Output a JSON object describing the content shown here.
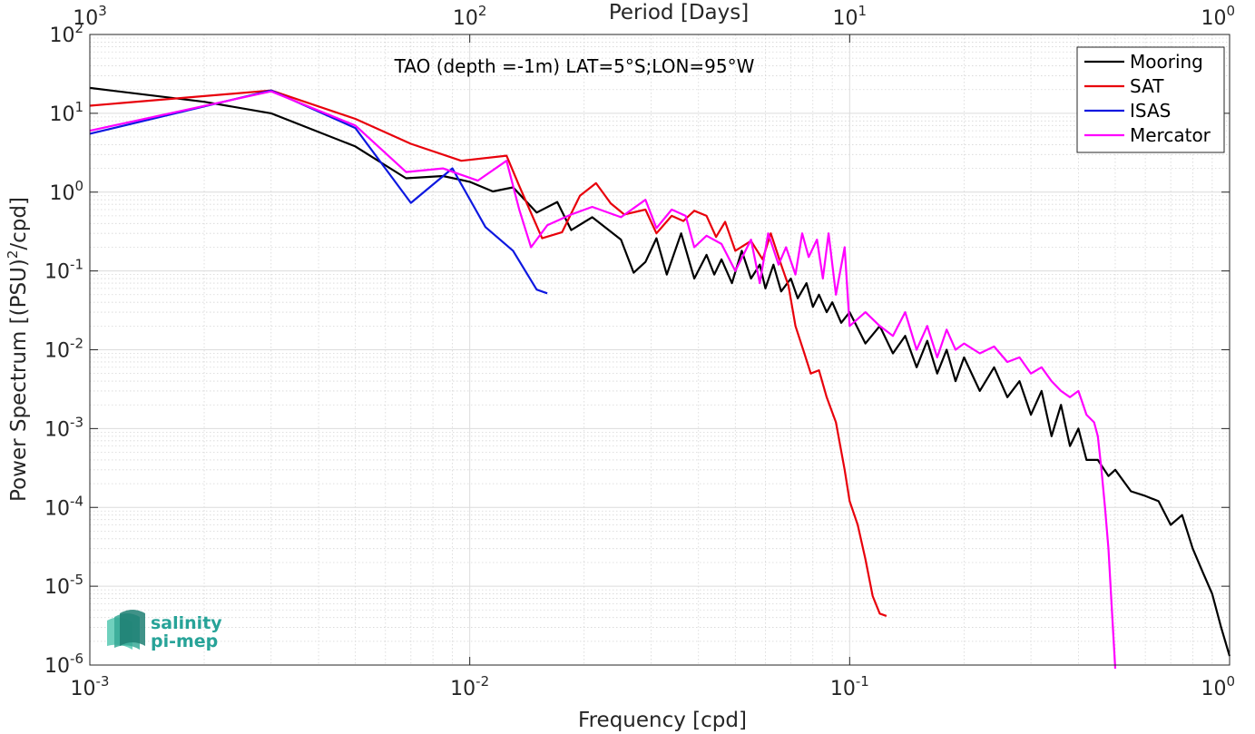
{
  "chart_data": {
    "type": "line",
    "title": "TAO (depth =-1m) LAT=5°S;LON=95°W",
    "xlabel": "Frequency [cpd]",
    "ylabel": "Power Spectrum [(PSU)²/cpd]",
    "ylabel_main": "Power Spectrum [(PSU)",
    "ylabel_sup": "2",
    "ylabel_tail": "/cpd]",
    "top_xlabel": "Period [Days]",
    "x_scale": "log",
    "y_scale": "log",
    "xlim": [
      0.001,
      1
    ],
    "ylim": [
      1e-06,
      100
    ],
    "grid": true,
    "legend_position": "top-right",
    "x_ticks": [
      {
        "base": "10",
        "exp": "-3",
        "value": 0.001
      },
      {
        "base": "10",
        "exp": "-2",
        "value": 0.01
      },
      {
        "base": "10",
        "exp": "-1",
        "value": 0.1
      },
      {
        "base": "10",
        "exp": "0",
        "value": 1
      }
    ],
    "top_ticks": [
      {
        "base": "10",
        "exp": "3",
        "value": 0.001
      },
      {
        "base": "10",
        "exp": "2",
        "value": 0.01
      },
      {
        "base": "10",
        "exp": "1",
        "value": 0.1
      },
      {
        "base": "10",
        "exp": "0",
        "value": 1
      }
    ],
    "y_ticks": [
      {
        "base": "10",
        "exp": "-6",
        "value": 1e-06
      },
      {
        "base": "10",
        "exp": "-5",
        "value": 1e-05
      },
      {
        "base": "10",
        "exp": "-4",
        "value": 0.0001
      },
      {
        "base": "10",
        "exp": "-3",
        "value": 0.001
      },
      {
        "base": "10",
        "exp": "-2",
        "value": 0.01
      },
      {
        "base": "10",
        "exp": "-1",
        "value": 0.1
      },
      {
        "base": "10",
        "exp": "0",
        "value": 1
      },
      {
        "base": "10",
        "exp": "1",
        "value": 10
      },
      {
        "base": "10",
        "exp": "2",
        "value": 100
      }
    ],
    "series": [
      {
        "name": "Mooring",
        "color": "#000000",
        "points": [
          [
            0.001,
            21
          ],
          [
            0.002,
            14
          ],
          [
            0.003,
            10
          ],
          [
            0.005,
            3.8
          ],
          [
            0.0068,
            1.5
          ],
          [
            0.0085,
            1.6
          ],
          [
            0.01,
            1.35
          ],
          [
            0.0115,
            1.02
          ],
          [
            0.013,
            1.15
          ],
          [
            0.015,
            0.55
          ],
          [
            0.017,
            0.75
          ],
          [
            0.0185,
            0.33
          ],
          [
            0.021,
            0.48
          ],
          [
            0.025,
            0.25
          ],
          [
            0.027,
            0.095
          ],
          [
            0.029,
            0.13
          ],
          [
            0.031,
            0.26
          ],
          [
            0.033,
            0.09
          ],
          [
            0.036,
            0.3
          ],
          [
            0.039,
            0.08
          ],
          [
            0.042,
            0.16
          ],
          [
            0.044,
            0.09
          ],
          [
            0.046,
            0.14
          ],
          [
            0.049,
            0.07
          ],
          [
            0.052,
            0.18
          ],
          [
            0.055,
            0.08
          ],
          [
            0.058,
            0.12
          ],
          [
            0.06,
            0.06
          ],
          [
            0.063,
            0.12
          ],
          [
            0.066,
            0.055
          ],
          [
            0.07,
            0.08
          ],
          [
            0.073,
            0.045
          ],
          [
            0.077,
            0.07
          ],
          [
            0.08,
            0.035
          ],
          [
            0.083,
            0.05
          ],
          [
            0.087,
            0.03
          ],
          [
            0.09,
            0.04
          ],
          [
            0.095,
            0.022
          ],
          [
            0.1,
            0.03
          ],
          [
            0.11,
            0.012
          ],
          [
            0.12,
            0.02
          ],
          [
            0.13,
            0.009
          ],
          [
            0.14,
            0.015
          ],
          [
            0.15,
            0.006
          ],
          [
            0.16,
            0.013
          ],
          [
            0.17,
            0.005
          ],
          [
            0.18,
            0.01
          ],
          [
            0.19,
            0.004
          ],
          [
            0.2,
            0.008
          ],
          [
            0.22,
            0.003
          ],
          [
            0.24,
            0.006
          ],
          [
            0.26,
            0.0025
          ],
          [
            0.28,
            0.004
          ],
          [
            0.3,
            0.0015
          ],
          [
            0.32,
            0.003
          ],
          [
            0.34,
            0.0008
          ],
          [
            0.36,
            0.002
          ],
          [
            0.38,
            0.0006
          ],
          [
            0.4,
            0.001
          ],
          [
            0.42,
            0.0004
          ],
          [
            0.45,
            0.0004
          ],
          [
            0.48,
            0.00025
          ],
          [
            0.5,
            0.0003
          ],
          [
            0.55,
            0.00016
          ],
          [
            0.6,
            0.00014
          ],
          [
            0.65,
            0.00012
          ],
          [
            0.7,
            6e-05
          ],
          [
            0.75,
            8e-05
          ],
          [
            0.8,
            3e-05
          ],
          [
            0.85,
            1.5e-05
          ],
          [
            0.9,
            8e-06
          ],
          [
            0.95,
            3e-06
          ],
          [
            1.0,
            1.3e-06
          ]
        ]
      },
      {
        "name": "SAT",
        "color": "#e8000b",
        "points": [
          [
            0.001,
            12.5
          ],
          [
            0.003,
            19.5
          ],
          [
            0.005,
            8.5
          ],
          [
            0.007,
            4.1
          ],
          [
            0.0095,
            2.5
          ],
          [
            0.0125,
            2.9
          ],
          [
            0.0135,
            1.2
          ],
          [
            0.0155,
            0.26
          ],
          [
            0.0175,
            0.31
          ],
          [
            0.0195,
            0.9
          ],
          [
            0.0215,
            1.3
          ],
          [
            0.0235,
            0.72
          ],
          [
            0.0255,
            0.52
          ],
          [
            0.029,
            0.6
          ],
          [
            0.031,
            0.3
          ],
          [
            0.034,
            0.5
          ],
          [
            0.0365,
            0.43
          ],
          [
            0.039,
            0.58
          ],
          [
            0.042,
            0.5
          ],
          [
            0.0445,
            0.27
          ],
          [
            0.047,
            0.42
          ],
          [
            0.05,
            0.18
          ],
          [
            0.055,
            0.24
          ],
          [
            0.059,
            0.14
          ],
          [
            0.062,
            0.3
          ],
          [
            0.066,
            0.12
          ],
          [
            0.069,
            0.065
          ],
          [
            0.072,
            0.02
          ],
          [
            0.076,
            0.009
          ],
          [
            0.079,
            0.005
          ],
          [
            0.083,
            0.0055
          ],
          [
            0.087,
            0.0025
          ],
          [
            0.092,
            0.0012
          ],
          [
            0.097,
            0.0003
          ],
          [
            0.1,
            0.00012
          ],
          [
            0.105,
            6e-05
          ],
          [
            0.11,
            2.2e-05
          ],
          [
            0.115,
            7.5e-06
          ],
          [
            0.12,
            4.5e-06
          ],
          [
            0.125,
            4.2e-06
          ]
        ]
      },
      {
        "name": "ISAS",
        "color": "#0e18e0",
        "points": [
          [
            0.001,
            5.5
          ],
          [
            0.003,
            19.5
          ],
          [
            0.005,
            6.5
          ],
          [
            0.007,
            0.73
          ],
          [
            0.009,
            2.0
          ],
          [
            0.011,
            0.36
          ],
          [
            0.013,
            0.18
          ],
          [
            0.015,
            0.058
          ],
          [
            0.016,
            0.052
          ]
        ]
      },
      {
        "name": "Mercator",
        "color": "#ff00ff",
        "points": [
          [
            0.001,
            6
          ],
          [
            0.003,
            19
          ],
          [
            0.005,
            7
          ],
          [
            0.0068,
            1.8
          ],
          [
            0.0085,
            2.0
          ],
          [
            0.0105,
            1.4
          ],
          [
            0.0125,
            2.5
          ],
          [
            0.0135,
            0.6
          ],
          [
            0.0145,
            0.2
          ],
          [
            0.016,
            0.38
          ],
          [
            0.0185,
            0.52
          ],
          [
            0.021,
            0.65
          ],
          [
            0.025,
            0.48
          ],
          [
            0.029,
            0.8
          ],
          [
            0.031,
            0.35
          ],
          [
            0.034,
            0.6
          ],
          [
            0.037,
            0.5
          ],
          [
            0.039,
            0.2
          ],
          [
            0.042,
            0.28
          ],
          [
            0.046,
            0.22
          ],
          [
            0.05,
            0.1
          ],
          [
            0.055,
            0.25
          ],
          [
            0.058,
            0.07
          ],
          [
            0.061,
            0.3
          ],
          [
            0.065,
            0.12
          ],
          [
            0.068,
            0.2
          ],
          [
            0.072,
            0.09
          ],
          [
            0.075,
            0.3
          ],
          [
            0.078,
            0.15
          ],
          [
            0.082,
            0.25
          ],
          [
            0.085,
            0.08
          ],
          [
            0.088,
            0.3
          ],
          [
            0.092,
            0.05
          ],
          [
            0.097,
            0.2
          ],
          [
            0.1,
            0.02
          ],
          [
            0.11,
            0.03
          ],
          [
            0.12,
            0.02
          ],
          [
            0.13,
            0.015
          ],
          [
            0.14,
            0.03
          ],
          [
            0.15,
            0.01
          ],
          [
            0.16,
            0.02
          ],
          [
            0.17,
            0.008
          ],
          [
            0.18,
            0.018
          ],
          [
            0.19,
            0.01
          ],
          [
            0.2,
            0.012
          ],
          [
            0.22,
            0.009
          ],
          [
            0.24,
            0.011
          ],
          [
            0.26,
            0.007
          ],
          [
            0.28,
            0.008
          ],
          [
            0.3,
            0.005
          ],
          [
            0.32,
            0.006
          ],
          [
            0.34,
            0.004
          ],
          [
            0.36,
            0.003
          ],
          [
            0.38,
            0.0025
          ],
          [
            0.4,
            0.003
          ],
          [
            0.42,
            0.0015
          ],
          [
            0.44,
            0.0012
          ],
          [
            0.45,
            0.0008
          ],
          [
            0.46,
            0.0003
          ],
          [
            0.47,
            0.0001
          ],
          [
            0.48,
            3e-05
          ],
          [
            0.49,
            5e-06
          ],
          [
            0.5,
            9e-07
          ]
        ]
      }
    ]
  },
  "logo": {
    "line1": "salinity",
    "line2": "pi-mep"
  }
}
